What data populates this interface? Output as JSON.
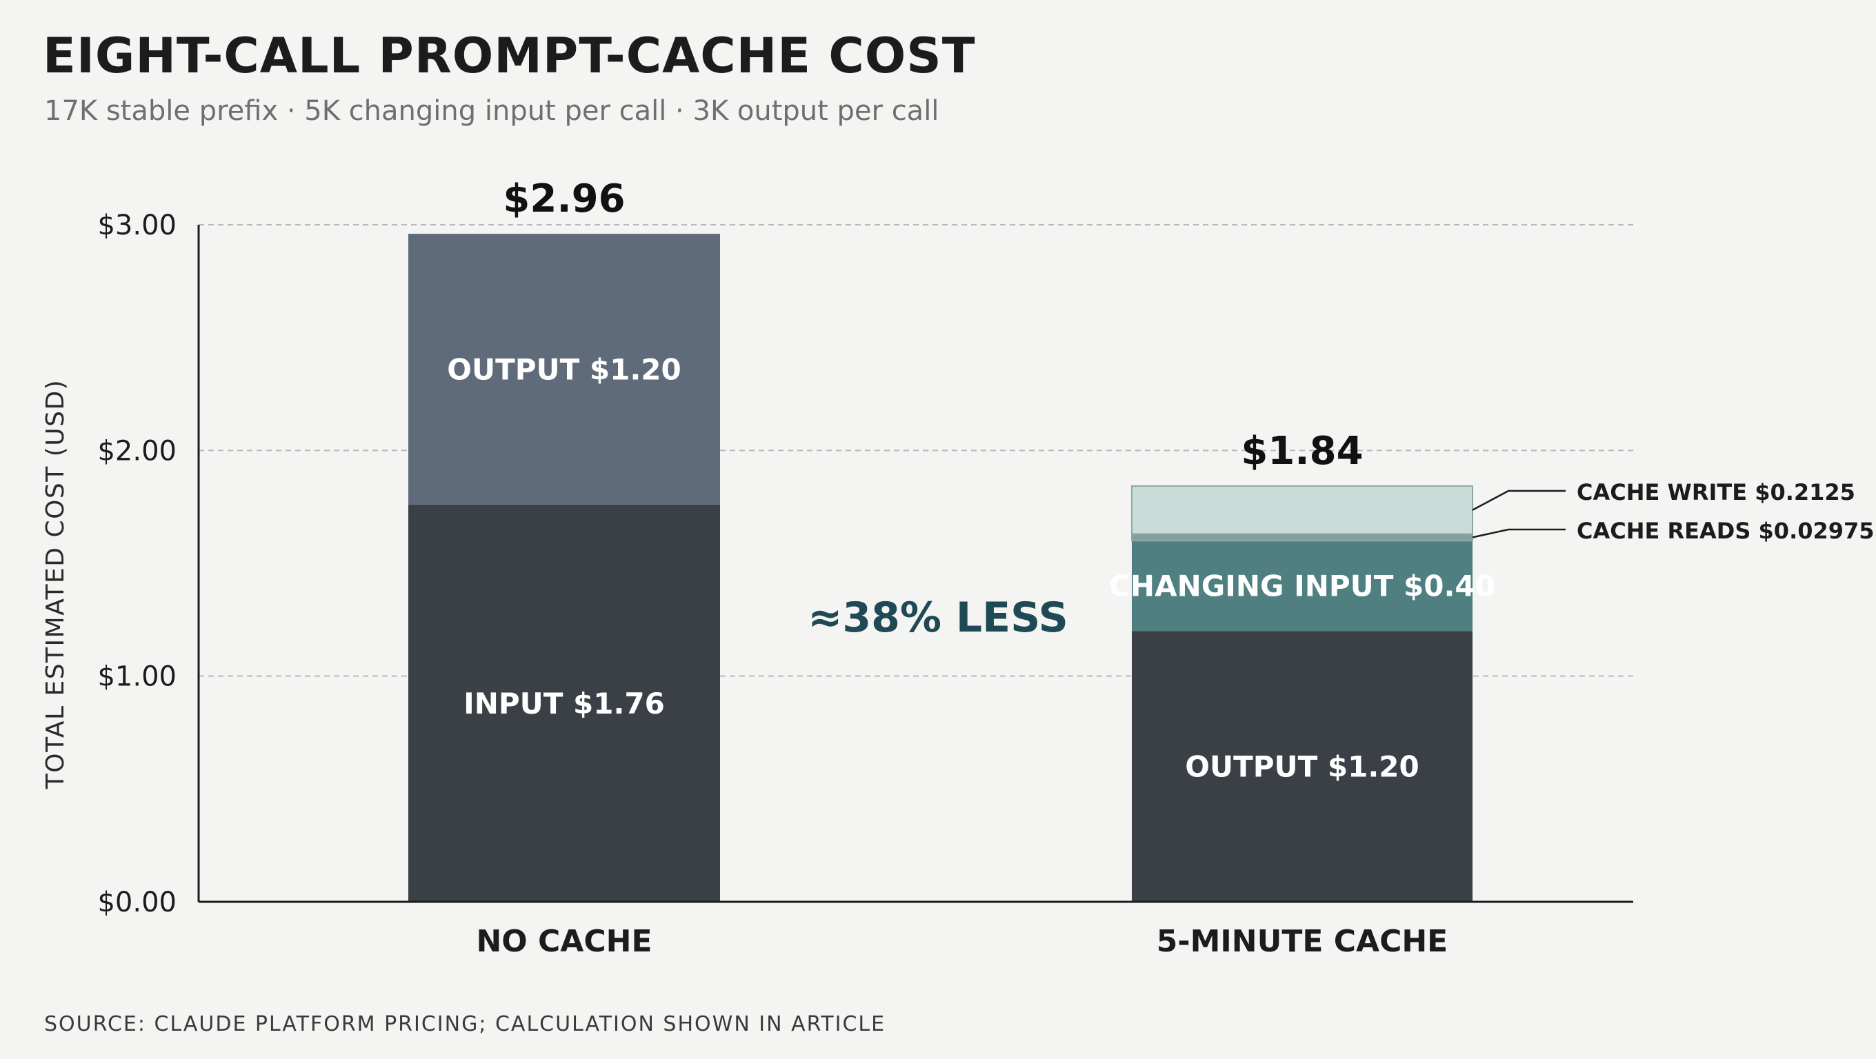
{
  "title": "EIGHT-CALL PROMPT-CACHE COST",
  "subtitle": "17K stable prefix · 5K changing input per call · 3K output per call",
  "source": "SOURCE: CLAUDE PLATFORM PRICING; CALCULATION SHOWN IN ARTICLE",
  "annotation": "≈38% LESS",
  "colors": {
    "dark": "#3a4046",
    "slate": "#5f6b7a",
    "teal": "#4f7f80",
    "teal_mid": "#7fa29f",
    "mint": "#c9dcd8",
    "accent_text": "#1f4a55",
    "grid": "#b8b8b8",
    "axis": "#1c1c1c"
  },
  "chart_data": {
    "type": "bar",
    "stacked": true,
    "ylabel": "TOTAL ESTIMATED COST (USD)",
    "ylim": [
      0,
      3
    ],
    "yticks": [
      0,
      1,
      2,
      3
    ],
    "ytick_labels": [
      "$0.00",
      "$1.00",
      "$2.00",
      "$3.00"
    ],
    "grid": true,
    "categories": [
      "NO CACHE",
      "5-MINUTE CACHE"
    ],
    "totals": [
      2.96,
      1.84
    ],
    "total_labels": [
      "$2.96",
      "$1.84"
    ],
    "bars": [
      {
        "category": "NO CACHE",
        "segments": [
          {
            "name": "INPUT",
            "value": 1.76,
            "label": "INPUT  $1.76",
            "color": "#3a4046",
            "label_inside": true
          },
          {
            "name": "OUTPUT",
            "value": 1.2,
            "label": "OUTPUT  $1.20",
            "color": "#5f6b7a",
            "label_inside": true
          }
        ]
      },
      {
        "category": "5-MINUTE CACHE",
        "segments": [
          {
            "name": "OUTPUT",
            "value": 1.2,
            "label": "OUTPUT  $1.20",
            "color": "#3a4046",
            "label_inside": true
          },
          {
            "name": "CHANGING INPUT",
            "value": 0.4,
            "label": "CHANGING INPUT  $0.40",
            "color": "#4f7f80",
            "label_inside": true
          },
          {
            "name": "CACHE READS",
            "value": 0.02975,
            "label": "CACHE READS  $0.02975",
            "color": "#7fa29f",
            "label_inside": false
          },
          {
            "name": "CACHE WRITE",
            "value": 0.2125,
            "label": "CACHE WRITE  $0.2125",
            "color": "#c9dcd8",
            "label_inside": false
          }
        ]
      }
    ]
  }
}
